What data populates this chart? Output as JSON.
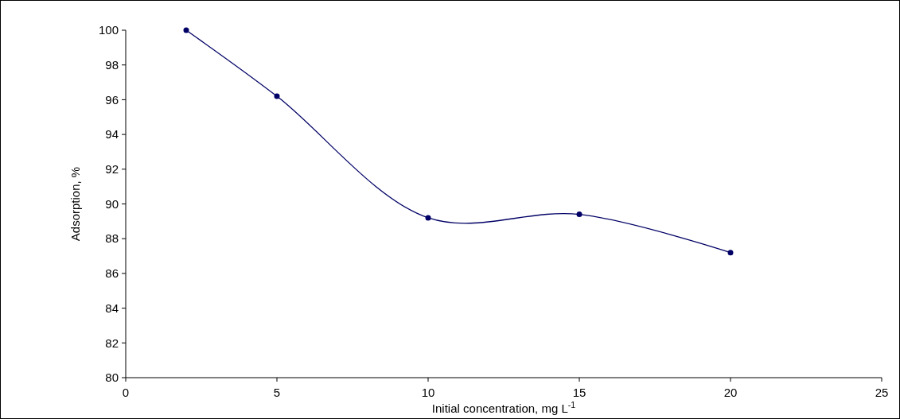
{
  "chart_data": {
    "type": "line",
    "xlabel": "Initial concentration, mg L$^{-1}$",
    "ylabel": "Adsorption, %",
    "x": [
      2,
      5,
      10,
      15,
      20
    ],
    "series": [
      {
        "color": "#000066",
        "values": [
          100,
          96.2,
          89.2,
          89.4,
          87.2
        ]
      }
    ],
    "xlim": [
      0,
      25
    ],
    "xticks": [
      0,
      5,
      10,
      15,
      20,
      25
    ],
    "ylim": [
      80,
      100
    ],
    "yticks": [
      80,
      82,
      84,
      86,
      88,
      90,
      92,
      94,
      96,
      98,
      100
    ],
    "marker": "circle",
    "line_style": "solid"
  }
}
